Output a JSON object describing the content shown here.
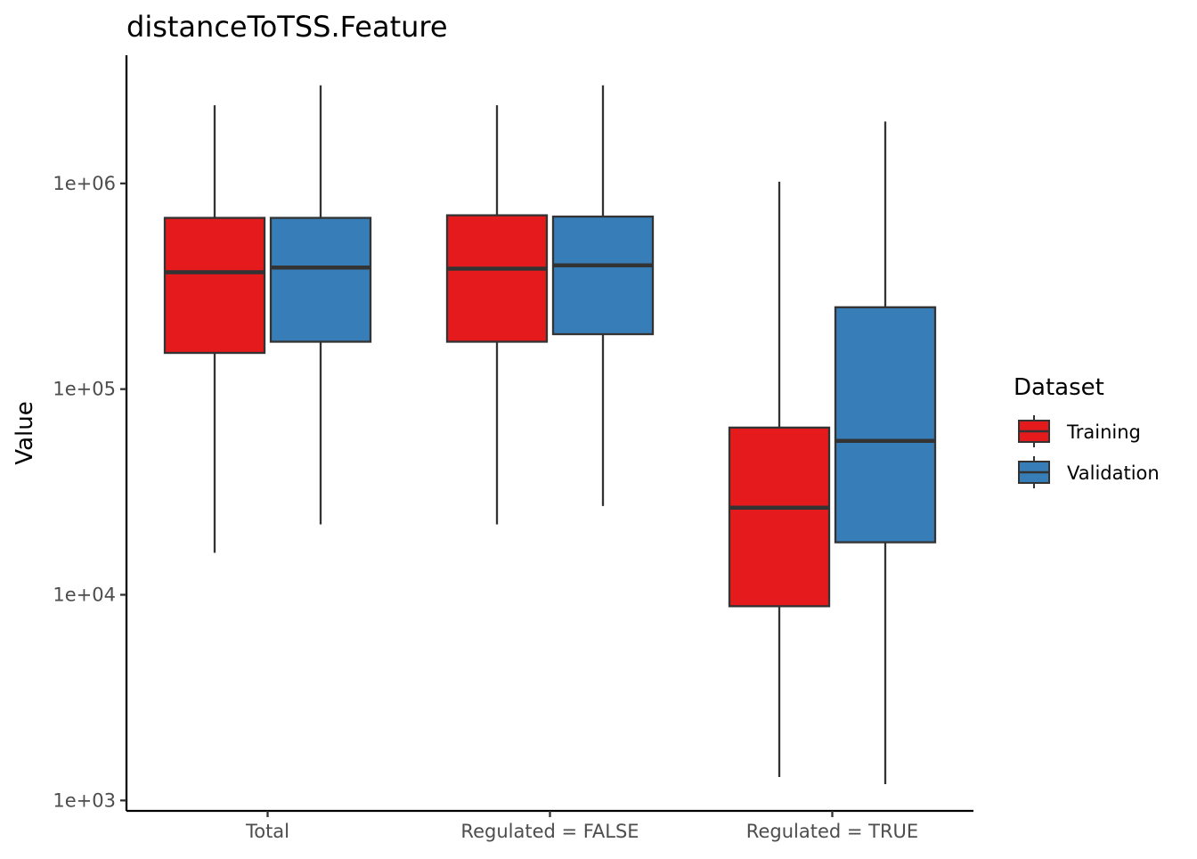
{
  "chart_data": {
    "type": "box",
    "title": "distanceToTSS.Feature",
    "xlabel": "",
    "ylabel": "Value",
    "y_scale": "log10",
    "ylim": [
      890,
      4200000
    ],
    "y_ticks": [
      {
        "value": 1000,
        "label": "1e+03"
      },
      {
        "value": 10000,
        "label": "1e+04"
      },
      {
        "value": 100000,
        "label": "1e+05"
      },
      {
        "value": 1000000,
        "label": "1e+06"
      }
    ],
    "categories": [
      "Total",
      "Regulated = FALSE",
      "Regulated = TRUE"
    ],
    "legend": {
      "title": "Dataset",
      "position": "right"
    },
    "series": [
      {
        "name": "Training",
        "color": "#E41A1C",
        "boxes": [
          {
            "min": 16000,
            "q1": 150000,
            "median": 370000,
            "q3": 680000,
            "max": 2400000
          },
          {
            "min": 22000,
            "q1": 170000,
            "median": 385000,
            "q3": 700000,
            "max": 2400000
          },
          {
            "min": 1300,
            "q1": 8800,
            "median": 26500,
            "q3": 65000,
            "max": 1020000
          }
        ]
      },
      {
        "name": "Validation",
        "color": "#377EB8",
        "boxes": [
          {
            "min": 22000,
            "q1": 170000,
            "median": 390000,
            "q3": 680000,
            "max": 3000000
          },
          {
            "min": 27000,
            "q1": 185000,
            "median": 400000,
            "q3": 690000,
            "max": 3000000
          },
          {
            "min": 1200,
            "q1": 18000,
            "median": 56000,
            "q3": 250000,
            "max": 2000000
          }
        ]
      }
    ]
  }
}
